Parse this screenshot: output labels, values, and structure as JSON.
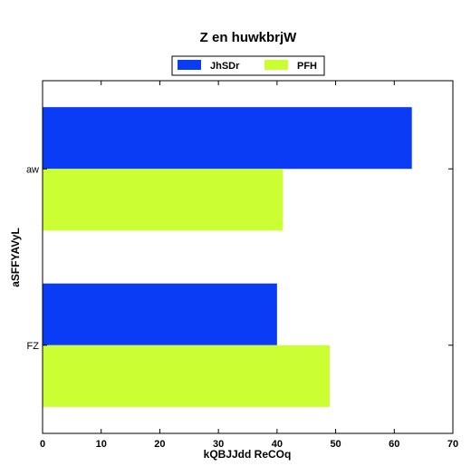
{
  "chart_data": {
    "type": "bar",
    "orientation": "horizontal",
    "title": "Z en huwkbrjW",
    "xlabel": "kQBJJdd ReCOq",
    "ylabel": "aSFFYAVyL",
    "categories": [
      "aw",
      "FZ"
    ],
    "series": [
      {
        "name": "JhSDr",
        "color": "#0a3cf5",
        "values": [
          63,
          40
        ]
      },
      {
        "name": "PFH",
        "color": "#ccff33",
        "values": [
          41,
          49
        ]
      }
    ],
    "xlim": [
      0,
      70
    ],
    "xticks": [
      "0",
      "10",
      "20",
      "30",
      "40",
      "50",
      "60",
      "70"
    ],
    "grid": false,
    "legend_position": "top-center"
  }
}
